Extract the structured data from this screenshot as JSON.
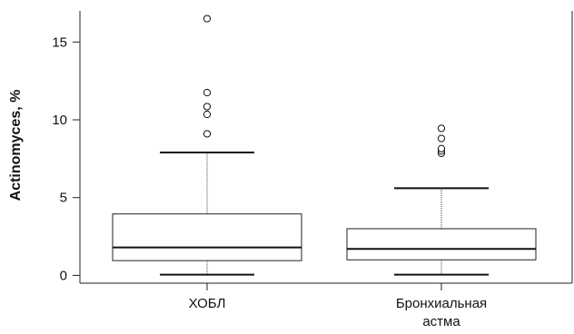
{
  "chart_data": {
    "type": "boxplot",
    "ylabel": "Actinomyces, %",
    "ylim": [
      -0.5,
      17
    ],
    "yticks": [
      0,
      5,
      10,
      15
    ],
    "grid": false,
    "categories": [
      [
        "ХОБЛ"
      ],
      [
        "Бронхиальная",
        "астма"
      ]
    ],
    "boxes": [
      {
        "min": 0.05,
        "q1": 0.95,
        "median": 1.8,
        "q3": 3.95,
        "max": 7.9,
        "outliers": [
          9.1,
          10.35,
          10.85,
          11.75,
          16.5
        ]
      },
      {
        "min": 0.05,
        "q1": 1.0,
        "median": 1.7,
        "q3": 3.0,
        "max": 5.6,
        "outliers": [
          7.85,
          8.0,
          8.15,
          8.8,
          9.45
        ]
      }
    ]
  }
}
